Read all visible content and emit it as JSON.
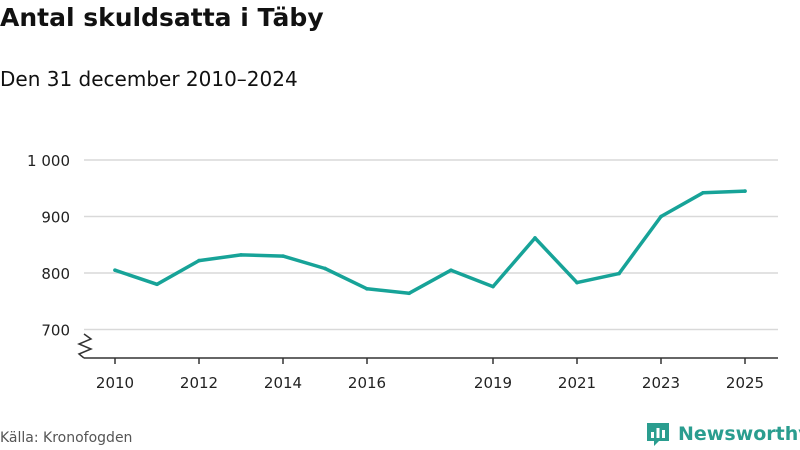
{
  "header": {
    "title": "Antal skuldsatta i Täby",
    "subtitle": "Den 31 december 2010–2024"
  },
  "footer": {
    "source": "Källa: Kronofogden",
    "brand": "Newsworthy"
  },
  "colors": {
    "line": "#17a398",
    "grid": "#d9d9d9",
    "axis": "#333333",
    "brand": "#2a9d8f"
  },
  "icons": {
    "brand_logo": "bar-chart-logo-icon",
    "axis_break": "axis-break-icon"
  },
  "chart_data": {
    "type": "line",
    "title": "Antal skuldsatta i Täby",
    "subtitle": "Den 31 december 2010–2024",
    "x": [
      2010,
      2011,
      2012,
      2013,
      2014,
      2015,
      2016,
      2017,
      2018,
      2019,
      2020,
      2021,
      2022,
      2023,
      2024,
      2025
    ],
    "series": [
      {
        "values": [
          805,
          780,
          822,
          832,
          830,
          808,
          772,
          764,
          805,
          776,
          862,
          783,
          799,
          900,
          942,
          945
        ]
      }
    ],
    "ylim": [
      650,
      1000
    ],
    "yticks": [
      700,
      800,
      900,
      1000
    ],
    "ytick_labels": [
      "700",
      "800",
      "900",
      "1 000"
    ],
    "xticks": [
      2010,
      2012,
      2014,
      2016,
      2019,
      2021,
      2023,
      2025
    ],
    "xtick_labels": [
      "2010",
      "2012",
      "2014",
      "2016",
      "2019",
      "2021",
      "2023",
      "2025"
    ],
    "xlim": [
      2009.5,
      2025.5
    ],
    "grid": true,
    "axis_break": true
  }
}
